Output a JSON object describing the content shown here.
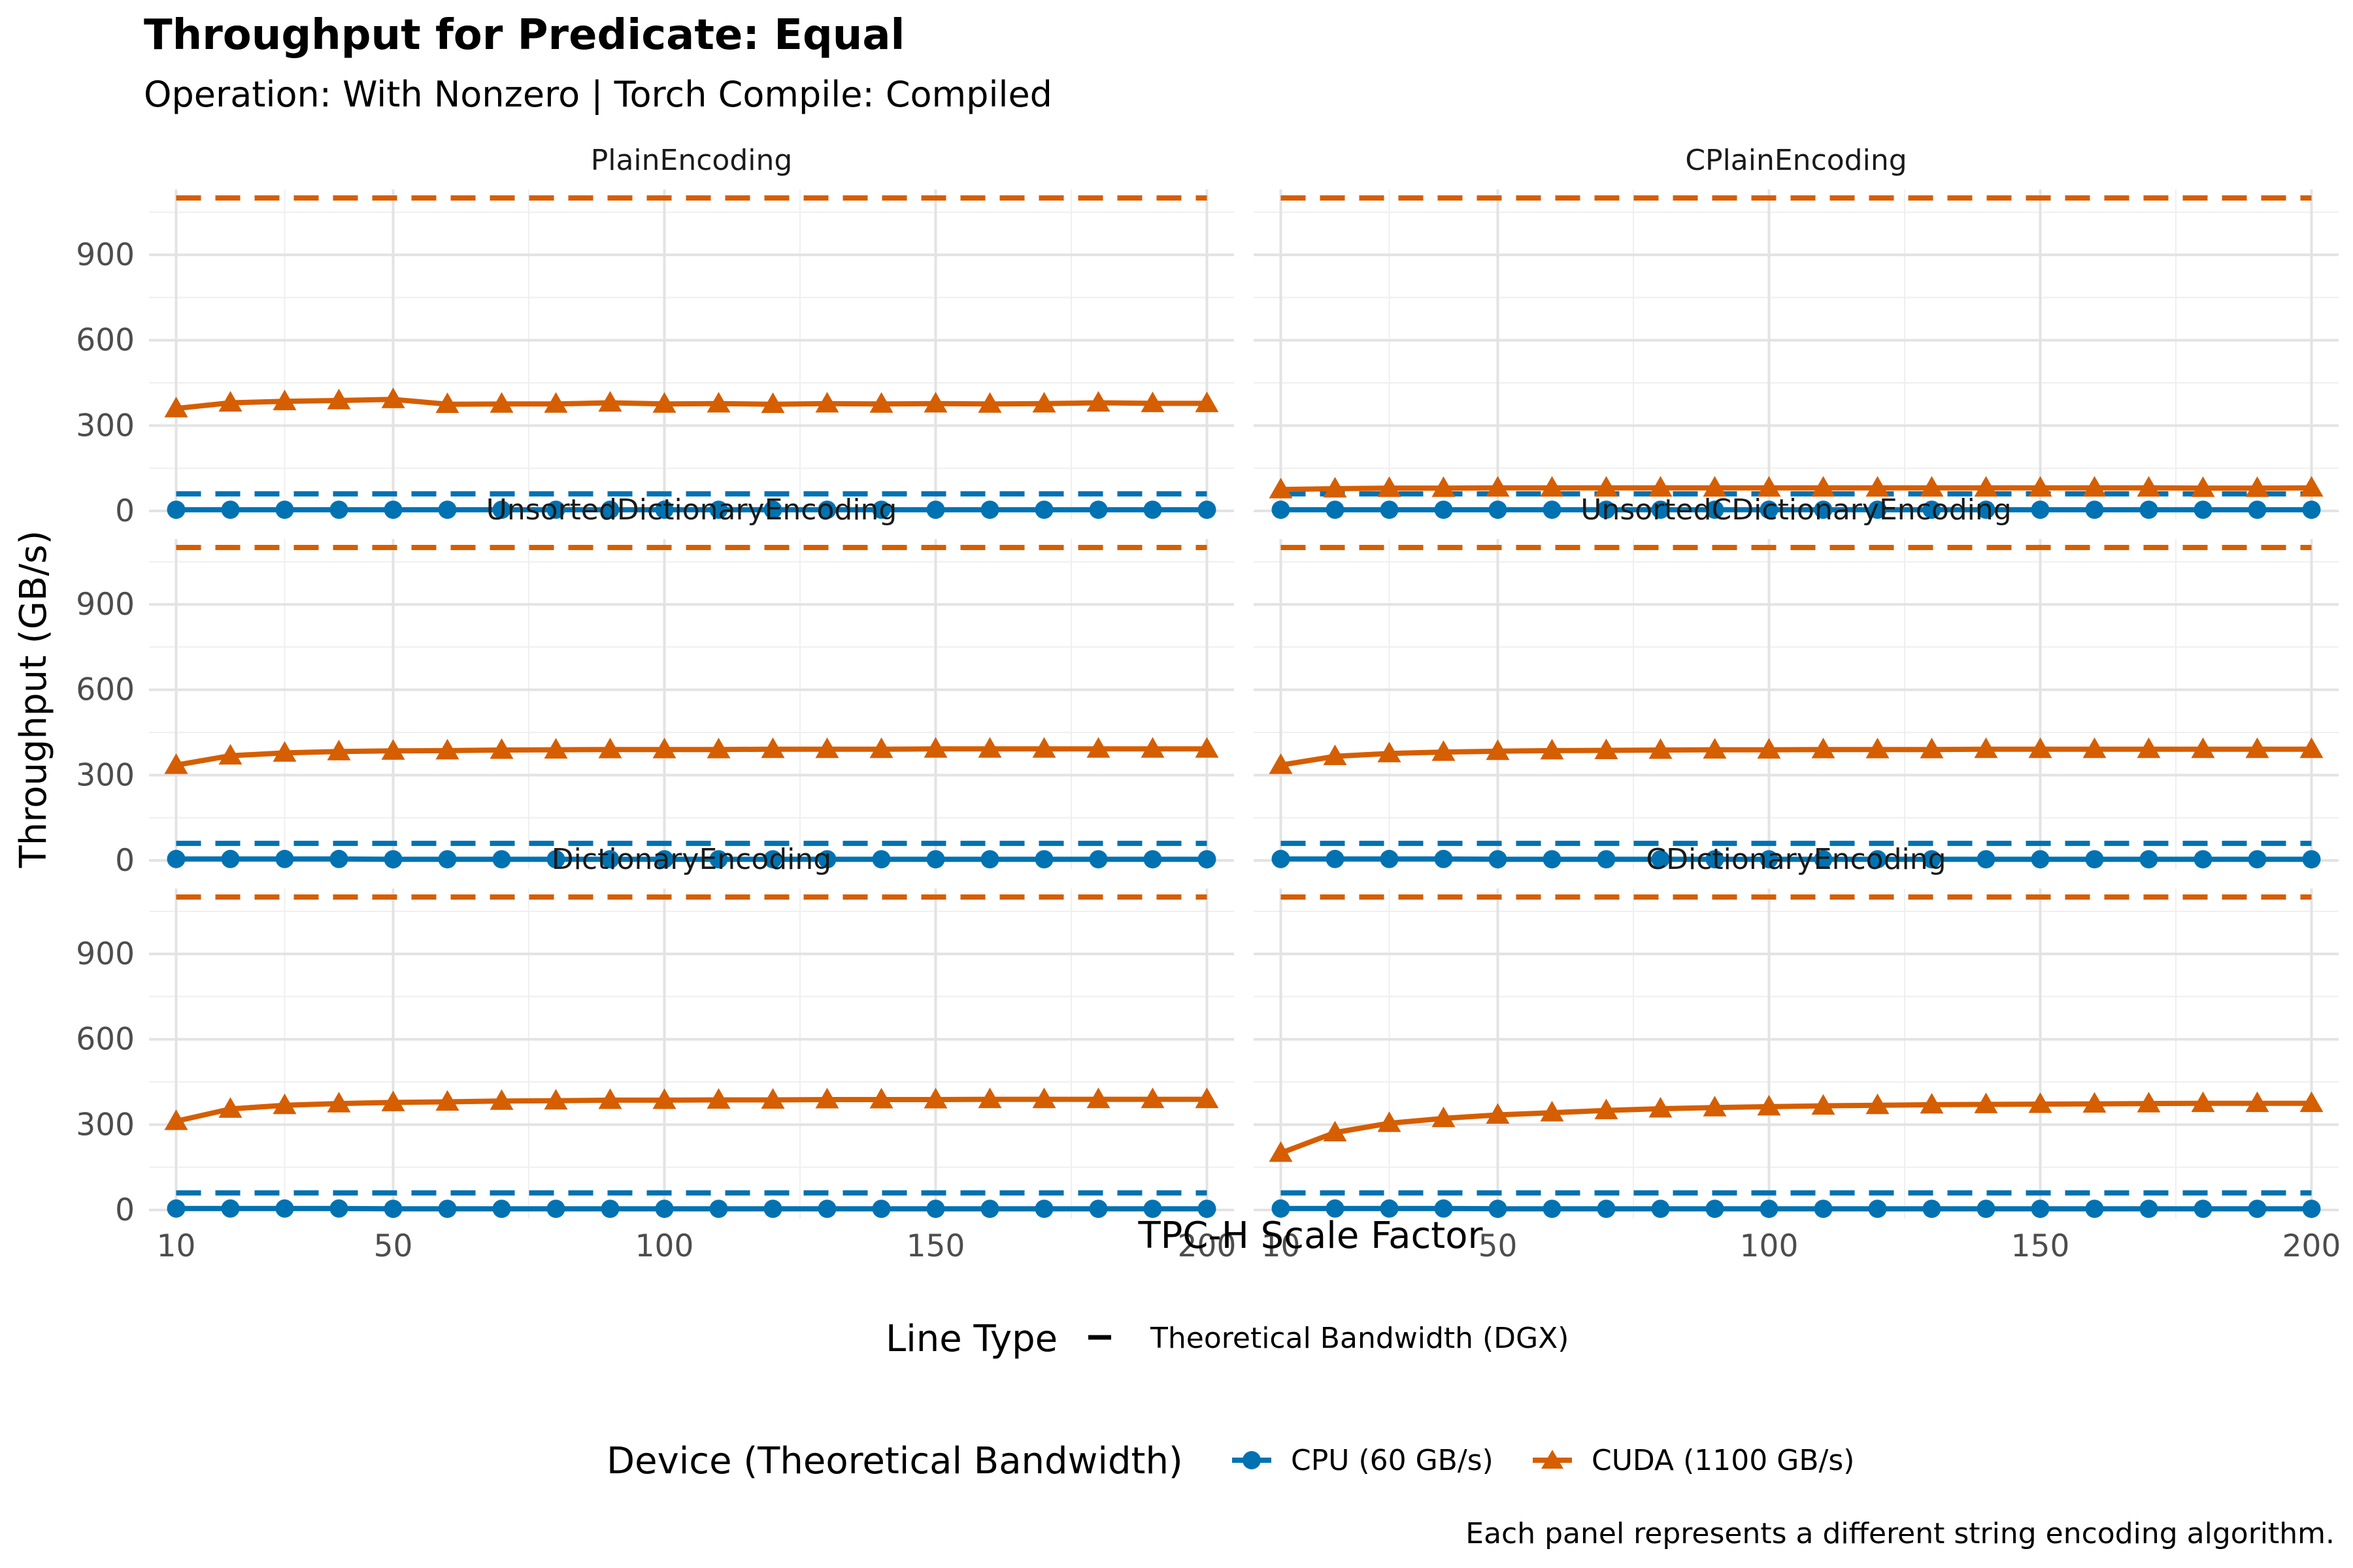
{
  "chart_data": {
    "type": "line",
    "title": "Throughput for Predicate: Equal",
    "subtitle": "Operation: With Nonzero | Torch Compile: Compiled",
    "xlabel": "TPC-H Scale Factor",
    "ylabel": "Throughput (GB/s)",
    "caption": "Each panel represents a different string encoding algorithm.",
    "x_ticks": [
      10,
      50,
      100,
      150,
      200
    ],
    "y_ticks": [
      0,
      300,
      600,
      900
    ],
    "xlim": [
      5,
      205
    ],
    "ylim": [
      -30,
      1130
    ],
    "grid": true,
    "x": [
      10,
      20,
      30,
      40,
      50,
      60,
      70,
      80,
      90,
      100,
      110,
      120,
      130,
      140,
      150,
      160,
      170,
      180,
      190,
      200
    ],
    "theoretical_bandwidth": {
      "CPU (60 GB/s)": 60,
      "CUDA (1100 GB/s)": 1100
    },
    "legend": {
      "linetype_title": "Line Type",
      "linetype_label": "Theoretical Bandwidth (DGX)",
      "device_title": "Device (Theoretical Bandwidth)",
      "position": "bottom"
    },
    "colors": {
      "CPU (60 GB/s)": "#0072B2",
      "CUDA (1100 GB/s)": "#D55E00"
    },
    "panels": [
      {
        "title": "PlainEncoding",
        "series": [
          {
            "name": "CPU (60 GB/s)",
            "values": [
              4,
              4,
              4,
              4,
              4,
              4,
              4,
              4,
              4,
              4,
              4,
              4,
              4,
              4,
              4,
              4,
              4,
              4,
              4,
              4
            ]
          },
          {
            "name": "CUDA (1100 GB/s)",
            "values": [
              360,
              380,
              385,
              388,
              392,
              375,
              376,
              376,
              380,
              376,
              377,
              375,
              377,
              376,
              377,
              376,
              377,
              380,
              378,
              378
            ]
          }
        ]
      },
      {
        "title": "CPlainEncoding",
        "series": [
          {
            "name": "CPU (60 GB/s)",
            "values": [
              4,
              4,
              4,
              4,
              4,
              4,
              4,
              4,
              4,
              4,
              4,
              4,
              4,
              4,
              4,
              4,
              4,
              4,
              4,
              4
            ]
          },
          {
            "name": "CUDA (1100 GB/s)",
            "values": [
              75,
              78,
              80,
              80,
              81,
              81,
              81,
              81,
              81,
              81,
              81,
              81,
              81,
              81,
              81,
              81,
              81,
              80,
              80,
              81
            ]
          }
        ]
      },
      {
        "title": "UnsortedDictionaryEncoding",
        "series": [
          {
            "name": "CPU (60 GB/s)",
            "values": [
              5,
              5,
              5,
              5,
              4,
              4,
              4,
              4,
              4,
              4,
              4,
              4,
              4,
              4,
              4,
              4,
              4,
              4,
              4,
              4
            ]
          },
          {
            "name": "CUDA (1100 GB/s)",
            "values": [
              335,
              368,
              378,
              383,
              385,
              386,
              388,
              389,
              390,
              390,
              390,
              391,
              391,
              391,
              392,
              392,
              392,
              392,
              392,
              392
            ]
          }
        ]
      },
      {
        "title": "UnsortedCDictionaryEncoding",
        "series": [
          {
            "name": "CPU (60 GB/s)",
            "values": [
              5,
              5,
              5,
              5,
              4,
              4,
              4,
              4,
              4,
              4,
              4,
              4,
              4,
              4,
              4,
              4,
              4,
              4,
              4,
              4
            ]
          },
          {
            "name": "CUDA (1100 GB/s)",
            "values": [
              335,
              366,
              376,
              381,
              384,
              386,
              387,
              388,
              389,
              389,
              390,
              390,
              390,
              391,
              391,
              391,
              391,
              391,
              391,
              391
            ]
          }
        ]
      },
      {
        "title": "DictionaryEncoding",
        "series": [
          {
            "name": "CPU (60 GB/s)",
            "values": [
              5,
              5,
              5,
              5,
              4,
              4,
              4,
              4,
              4,
              4,
              4,
              4,
              4,
              4,
              4,
              4,
              4,
              4,
              4,
              4
            ]
          },
          {
            "name": "CUDA (1100 GB/s)",
            "values": [
              312,
              355,
              368,
              374,
              378,
              380,
              383,
              384,
              386,
              386,
              387,
              387,
              388,
              388,
              388,
              389,
              389,
              389,
              389,
              389
            ]
          }
        ]
      },
      {
        "title": "CDictionaryEncoding",
        "series": [
          {
            "name": "CPU (60 GB/s)",
            "values": [
              5,
              5,
              5,
              5,
              4,
              4,
              4,
              4,
              4,
              4,
              4,
              4,
              4,
              4,
              4,
              4,
              4,
              4,
              4,
              4
            ]
          },
          {
            "name": "CUDA (1100 GB/s)",
            "values": [
              200,
              272,
              305,
              322,
              334,
              342,
              350,
              356,
              360,
              363,
              366,
              368,
              370,
              371,
              372,
              373,
              374,
              375,
              375,
              375
            ]
          }
        ]
      }
    ]
  }
}
